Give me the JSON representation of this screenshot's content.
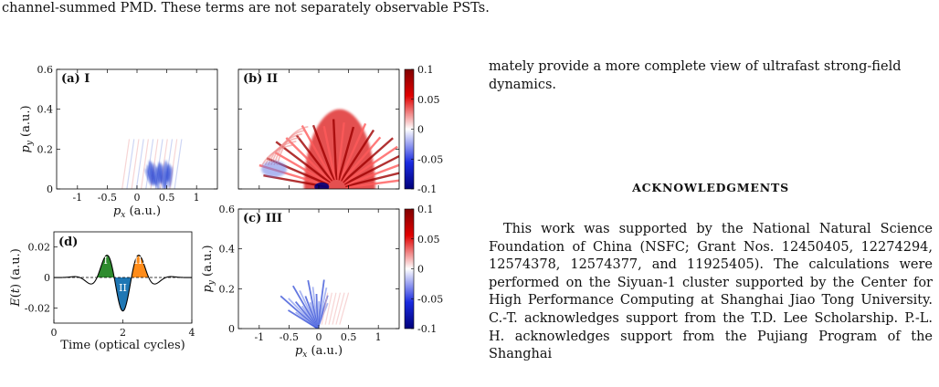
{
  "top_text": "channel-summed PMD. These terms are not separately observable PSTs.",
  "right_column": {
    "continuation_paragraph": "mately provide a more complete view of ultrafast strong-field dynamics.",
    "heading": "ACKNOWLEDGMENTS",
    "body": "This work was supported by the National Natural Science Foundation of China (NSFC; Grant Nos. 12450405, 12274294, 12574378, 12574377, and 11925405). The calculations were performed on the Siyuan-1 cluster supported by the Center for High Performance Computing at Shanghai Jiao Tong University. C.-T. acknowledges support from the T.D. Lee Scholarship. P.-L. H. acknowledges support from the Pujiang Program of the Shanghai"
  },
  "figure": {
    "panels": {
      "a": {
        "label": "(a) I",
        "ylabel": "p_y (a.u.)"
      },
      "b": {
        "label": "(b) II"
      },
      "c": {
        "label": "(c) III",
        "ylabel": "p_y (a.u.)"
      },
      "d": {
        "label": "(d)"
      }
    },
    "xlabel_px": "p_x (a.u.)",
    "colors": {
      "positive": "#d40000",
      "negative": "#1c3bd0",
      "zero": "#ffffff",
      "region_I": "#2e8b2e",
      "region_II": "#1f77b4",
      "region_III": "#ff8c1a"
    }
  },
  "chart_data": [
    {
      "type": "heatmap",
      "panel": "(a) I",
      "xlabel": "p_x (a.u.)",
      "ylabel": "p_y (a.u.)",
      "xlim": [
        -1.35,
        1.35
      ],
      "ylim": [
        0,
        0.6
      ],
      "xticks": [
        "-1",
        "-0.5",
        "0",
        "0.5",
        "1"
      ],
      "yticks": [
        "0",
        "0.2",
        "0.4",
        "0.6"
      ],
      "pattern": "faint fringes; blue (negative) lobe near px 0.2–0.6, py 0–0.2"
    },
    {
      "type": "heatmap",
      "panel": "(b) II",
      "xlim": [
        -1.35,
        1.35
      ],
      "ylim": [
        0,
        0.6
      ],
      "colorbar": {
        "ticks": [
          "0.1",
          "0.05",
          "0",
          "-0.05",
          "-0.1"
        ],
        "range": [
          -0.1,
          0.1
        ]
      },
      "pattern": "strong red (positive) half-dome of fringes centered near px 0.3"
    },
    {
      "type": "heatmap",
      "panel": "(c) III",
      "xlabel": "p_x (a.u.)",
      "ylabel": "p_y (a.u.)",
      "xlim": [
        -1.35,
        1.35
      ],
      "ylim": [
        0,
        0.6
      ],
      "xticks": [
        "-1",
        "-0.5",
        "0",
        "0.5",
        "1"
      ],
      "yticks": [
        "0",
        "0.2",
        "0.4",
        "0.6"
      ],
      "colorbar": {
        "ticks": [
          "0.1",
          "0.05",
          "0",
          "-0.05",
          "-0.1"
        ],
        "range": [
          -0.1,
          0.1
        ]
      },
      "pattern": "blue (negative) fan-shaped fringes centered near px -0.1, py 0–0.25"
    },
    {
      "type": "line",
      "panel": "(d)",
      "xlabel": "Time (optical cycles)",
      "ylabel": "E(t) (a.u.)",
      "xlim": [
        0,
        4
      ],
      "ylim": [
        -0.03,
        0.03
      ],
      "xticks": [
        "0",
        "2",
        "4"
      ],
      "yticks": [
        "0.02",
        "0",
        "-0.02"
      ],
      "series": [
        {
          "x": [
            0,
            0.5,
            0.75,
            1.0,
            1.25,
            1.5,
            1.75,
            2.0,
            2.25,
            2.5,
            2.75,
            3.0,
            3.25,
            3.5,
            4.0
          ],
          "values": [
            0,
            0.0005,
            0.001,
            -0.006,
            0,
            0.02,
            0,
            -0.022,
            0,
            0.02,
            0,
            -0.006,
            0,
            0.001,
            0
          ]
        }
      ],
      "regions": [
        {
          "label": "I",
          "x_range": [
            1.25,
            1.75
          ],
          "color": "#2e8b2e"
        },
        {
          "label": "II",
          "x_range": [
            1.75,
            2.25
          ],
          "color": "#1f77b4"
        },
        {
          "label": "III",
          "x_range": [
            2.25,
            2.75
          ],
          "color": "#ff8c1a"
        }
      ]
    }
  ]
}
